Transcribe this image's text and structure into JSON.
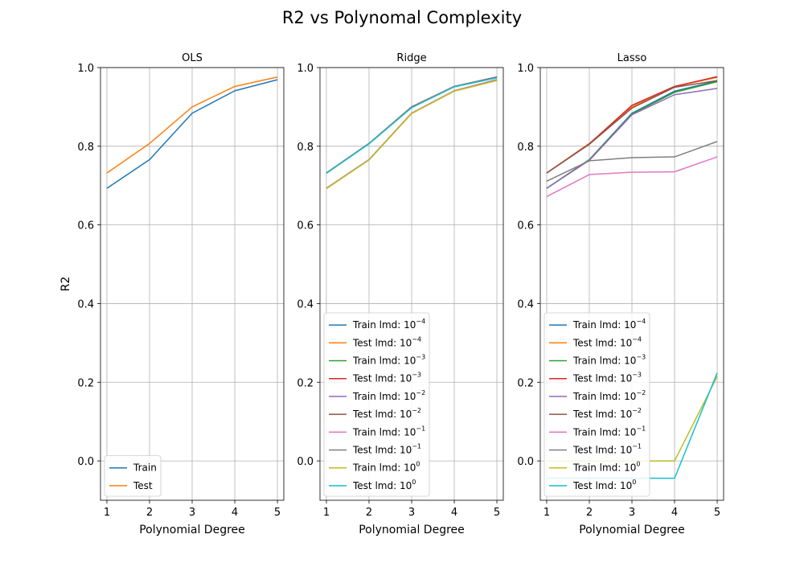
{
  "figure": {
    "title": "R2 vs Polynomal Complexity"
  },
  "chart_data": [
    {
      "type": "line",
      "title": "OLS",
      "xlabel": "Polynomial Degree",
      "ylabel": "R2",
      "x": [
        1,
        2,
        3,
        4,
        5
      ],
      "xlim": [
        0.85,
        5.15
      ],
      "ylim": [
        -0.1,
        1.0
      ],
      "yticks": [
        0.0,
        0.2,
        0.4,
        0.6,
        0.8,
        1.0
      ],
      "grid": true,
      "legend_position": "lower left",
      "series": [
        {
          "name": "Train",
          "color": "#1f77b4",
          "values": [
            0.693,
            0.766,
            0.884,
            0.941,
            0.969
          ]
        },
        {
          "name": "Test",
          "color": "#ff7f0e",
          "values": [
            0.732,
            0.807,
            0.9,
            0.952,
            0.976
          ]
        }
      ]
    },
    {
      "type": "line",
      "title": "Ridge",
      "xlabel": "Polynomial Degree",
      "ylabel": "",
      "x": [
        1,
        2,
        3,
        4,
        5
      ],
      "xlim": [
        0.85,
        5.15
      ],
      "ylim": [
        -0.1,
        1.0
      ],
      "yticks": [
        0.0,
        0.2,
        0.4,
        0.6,
        0.8,
        1.0
      ],
      "grid": true,
      "legend_position": "lower left",
      "series": [
        {
          "name": "Train lmd: 10",
          "exp": "−4",
          "color": "#1f77b4",
          "values": [
            0.693,
            0.766,
            0.884,
            0.941,
            0.969
          ]
        },
        {
          "name": "Test lmd: 10",
          "exp": "−4",
          "color": "#ff7f0e",
          "values": [
            0.732,
            0.807,
            0.9,
            0.952,
            0.976
          ]
        },
        {
          "name": "Train lmd: 10",
          "exp": "−3",
          "color": "#2ca02c",
          "values": [
            0.693,
            0.766,
            0.884,
            0.941,
            0.969
          ]
        },
        {
          "name": "Test lmd: 10",
          "exp": "−3",
          "color": "#d62728",
          "values": [
            0.732,
            0.807,
            0.9,
            0.952,
            0.976
          ]
        },
        {
          "name": "Train lmd: 10",
          "exp": "−2",
          "color": "#9467bd",
          "values": [
            0.693,
            0.766,
            0.884,
            0.941,
            0.969
          ]
        },
        {
          "name": "Test lmd: 10",
          "exp": "−2",
          "color": "#8c564b",
          "values": [
            0.732,
            0.807,
            0.9,
            0.952,
            0.976
          ]
        },
        {
          "name": "Train lmd: 10",
          "exp": "−1",
          "color": "#e377c2",
          "values": [
            0.693,
            0.766,
            0.884,
            0.941,
            0.968
          ]
        },
        {
          "name": "Test lmd: 10",
          "exp": "−1",
          "color": "#7f7f7f",
          "values": [
            0.732,
            0.807,
            0.899,
            0.952,
            0.975
          ]
        },
        {
          "name": "Train lmd: 10",
          "exp": "0",
          "color": "#bcbd22",
          "values": [
            0.692,
            0.765,
            0.883,
            0.94,
            0.967
          ]
        },
        {
          "name": "Test lmd: 10",
          "exp": "0",
          "color": "#17becf",
          "values": [
            0.731,
            0.806,
            0.898,
            0.951,
            0.974
          ]
        }
      ]
    },
    {
      "type": "line",
      "title": "Lasso",
      "xlabel": "Polynomial Degree",
      "ylabel": "",
      "x": [
        1,
        2,
        3,
        4,
        5
      ],
      "xlim": [
        0.85,
        5.15
      ],
      "ylim": [
        -0.1,
        1.0
      ],
      "yticks": [
        0.0,
        0.2,
        0.4,
        0.6,
        0.8,
        1.0
      ],
      "grid": true,
      "legend_position": "lower left",
      "series": [
        {
          "name": "Train lmd: 10",
          "exp": "−4",
          "color": "#1f77b4",
          "values": [
            0.693,
            0.766,
            0.884,
            0.94,
            0.966
          ]
        },
        {
          "name": "Test lmd: 10",
          "exp": "−4",
          "color": "#ff7f0e",
          "values": [
            0.732,
            0.807,
            0.9,
            0.952,
            0.975
          ]
        },
        {
          "name": "Train lmd: 10",
          "exp": "−3",
          "color": "#2ca02c",
          "values": [
            0.693,
            0.766,
            0.882,
            0.937,
            0.964
          ]
        },
        {
          "name": "Test lmd: 10",
          "exp": "−3",
          "color": "#d62728",
          "values": [
            0.732,
            0.806,
            0.904,
            0.952,
            0.977
          ]
        },
        {
          "name": "Train lmd: 10",
          "exp": "−2",
          "color": "#9467bd",
          "values": [
            0.693,
            0.764,
            0.88,
            0.931,
            0.947
          ]
        },
        {
          "name": "Test lmd: 10",
          "exp": "−2",
          "color": "#8c564b",
          "values": [
            0.732,
            0.805,
            0.897,
            0.95,
            0.967
          ]
        },
        {
          "name": "Train lmd: 10",
          "exp": "−1",
          "color": "#e377c2",
          "values": [
            0.672,
            0.728,
            0.734,
            0.735,
            0.773
          ]
        },
        {
          "name": "Test lmd: 10",
          "exp": "−1",
          "color": "#7f7f7f",
          "values": [
            0.711,
            0.763,
            0.771,
            0.773,
            0.812
          ]
        },
        {
          "name": "Train lmd: 10",
          "exp": "0",
          "color": "#bcbd22",
          "values": [
            0.0,
            0.0,
            0.0,
            0.0,
            0.215
          ]
        },
        {
          "name": "Test lmd: 10",
          "exp": "0",
          "color": "#17becf",
          "values": [
            -0.044,
            -0.044,
            -0.044,
            -0.044,
            0.224
          ]
        }
      ]
    }
  ]
}
